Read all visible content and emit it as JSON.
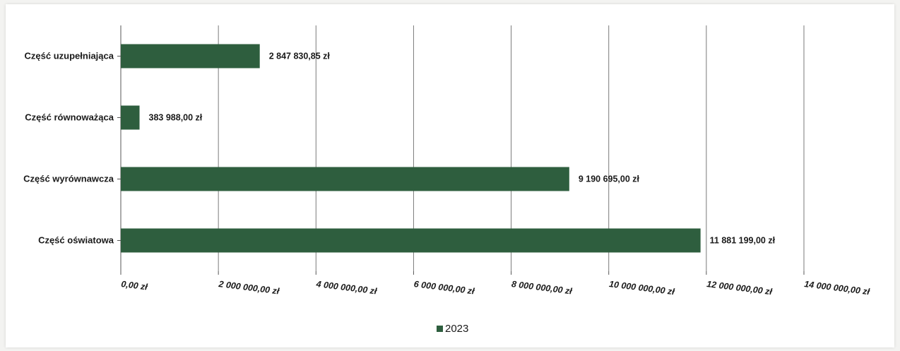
{
  "chart_data": {
    "type": "bar",
    "orientation": "horizontal",
    "categories": [
      "Część uzupełniająca",
      "Część równoważąca",
      "Część wyrównawcza",
      "Część oświatowa"
    ],
    "series": [
      {
        "name": "2023",
        "values": [
          2847830.85,
          383988.0,
          9190695.0,
          11881199.0
        ],
        "labels": [
          "2 847 830,85 zł",
          "383 988,00 zł",
          "9 190 695,00 zł",
          "11 881 199,00 zł"
        ]
      }
    ],
    "xlim": [
      0,
      14000000
    ],
    "xticks": [
      0,
      2000000,
      4000000,
      6000000,
      8000000,
      10000000,
      12000000,
      14000000
    ],
    "xtick_labels": [
      "0,00 zł",
      "2 000 000,00 zł",
      "4 000 000,00 zł",
      "6 000 000,00 zł",
      "8 000 000,00 zł",
      "10 000 000,00 zł",
      "12 000 000,00 zł",
      "14 000 000,00 zł"
    ],
    "grid": "vertical",
    "legend_position": "bottom-center",
    "colors": {
      "bar": "#2e5e3e",
      "grid": "#7a7a7a",
      "axis": "#555555"
    }
  }
}
